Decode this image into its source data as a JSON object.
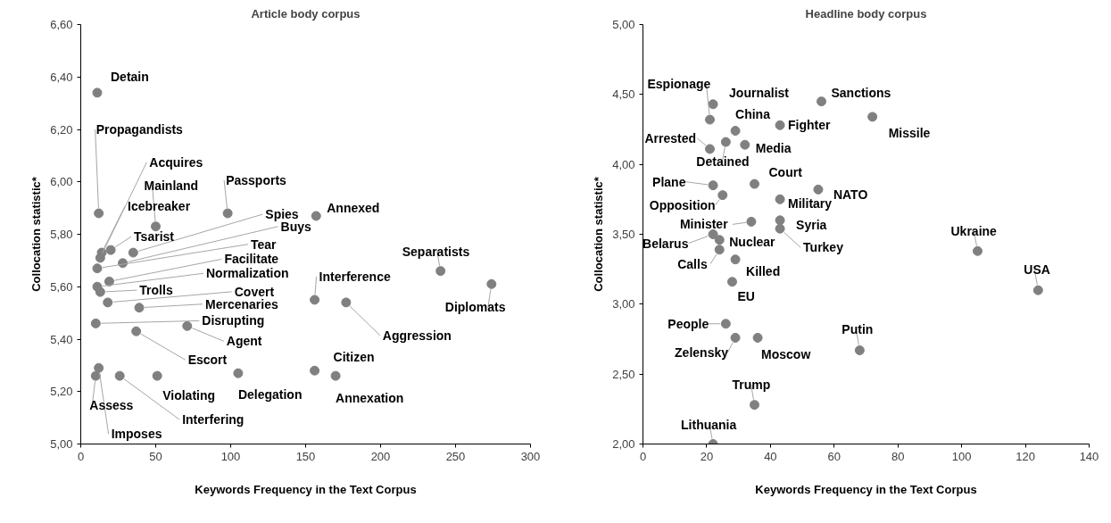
{
  "chart_data": [
    {
      "type": "scatter",
      "title": "Article body corpus",
      "xlabel": "Keywords Frequency in the Text Corpus",
      "ylabel": "Collocation statistic*",
      "xlim": [
        0,
        300
      ],
      "xticks": [
        0,
        50,
        100,
        150,
        200,
        250,
        300
      ],
      "ylim": [
        5.0,
        6.6
      ],
      "yticks": [
        {
          "value": 5.0,
          "label": "5,00"
        },
        {
          "value": 5.2,
          "label": "5,20"
        },
        {
          "value": 5.4,
          "label": "5,40"
        },
        {
          "value": 5.6,
          "label": "5,60"
        },
        {
          "value": 5.8,
          "label": "5,80"
        },
        {
          "value": 6.0,
          "label": "6,00"
        },
        {
          "value": 6.2,
          "label": "6,20"
        },
        {
          "value": 6.4,
          "label": "6,40"
        },
        {
          "value": 6.6,
          "label": "6,60"
        }
      ],
      "grid": false,
      "marker": "circle",
      "series": [
        {
          "color": "#808080",
          "x": [
            11,
            12,
            13,
            50,
            14,
            98,
            20,
            35,
            28,
            11,
            19,
            11,
            13,
            18,
            39,
            10,
            71,
            37,
            157,
            156,
            177,
            240,
            274,
            156,
            170,
            10,
            12,
            51,
            26,
            105
          ],
          "values": [
            6.34,
            5.88,
            5.71,
            5.83,
            5.73,
            5.88,
            5.74,
            5.73,
            5.69,
            5.67,
            5.62,
            5.6,
            5.58,
            5.54,
            5.52,
            5.46,
            5.45,
            5.43,
            5.87,
            5.55,
            5.54,
            5.66,
            5.61,
            5.28,
            5.26,
            5.26,
            5.29,
            5.26,
            5.26,
            5.27
          ]
        }
      ],
      "annotations": [
        {
          "text": "Detain",
          "x": 11,
          "y": 6.34
        },
        {
          "text": "Propagandists",
          "x": 12,
          "y": 5.88
        },
        {
          "text": "Acquires",
          "x": 13,
          "y": 5.71
        },
        {
          "text": "Mainland",
          "x": 50,
          "y": 5.83
        },
        {
          "text": "Icebreaker",
          "x": 14,
          "y": 5.73
        },
        {
          "text": "Passports",
          "x": 98,
          "y": 5.88
        },
        {
          "text": "Tsarist",
          "x": 20,
          "y": 5.74
        },
        {
          "text": "Spies",
          "x": 35,
          "y": 5.73
        },
        {
          "text": "Buys",
          "x": 28,
          "y": 5.69
        },
        {
          "text": "Tear",
          "x": 11,
          "y": 5.67
        },
        {
          "text": "Facilitate",
          "x": 19,
          "y": 5.62
        },
        {
          "text": "Normalization",
          "x": 11,
          "y": 5.6
        },
        {
          "text": "Trolls",
          "x": 13,
          "y": 5.58
        },
        {
          "text": "Covert",
          "x": 18,
          "y": 5.54
        },
        {
          "text": "Mercenaries",
          "x": 39,
          "y": 5.52
        },
        {
          "text": "Disrupting",
          "x": 10,
          "y": 5.46
        },
        {
          "text": "Agent",
          "x": 71,
          "y": 5.45
        },
        {
          "text": "Escort",
          "x": 37,
          "y": 5.43
        },
        {
          "text": "Annexed",
          "x": 157,
          "y": 5.87
        },
        {
          "text": "Interference",
          "x": 156,
          "y": 5.55
        },
        {
          "text": "Aggression",
          "x": 177,
          "y": 5.54
        },
        {
          "text": "Separatists",
          "x": 240,
          "y": 5.66
        },
        {
          "text": "Diplomats",
          "x": 274,
          "y": 5.61
        },
        {
          "text": "Citizen",
          "x": 156,
          "y": 5.28
        },
        {
          "text": "Annexation",
          "x": 170,
          "y": 5.26
        },
        {
          "text": "Assess",
          "x": 10,
          "y": 5.26
        },
        {
          "text": "Imposes",
          "x": 12,
          "y": 5.29
        },
        {
          "text": "Violating",
          "x": 51,
          "y": 5.26
        },
        {
          "text": "Interfering",
          "x": 26,
          "y": 5.26
        },
        {
          "text": "Delegation",
          "x": 105,
          "y": 5.27
        }
      ]
    },
    {
      "type": "scatter",
      "title": "Headline body corpus",
      "xlabel": "Keywords Frequency in the Text Corpus",
      "ylabel": "Collocation statistic*",
      "xlim": [
        0,
        140
      ],
      "xticks": [
        0,
        20,
        40,
        60,
        80,
        100,
        120,
        140
      ],
      "ylim": [
        2.0,
        5.0
      ],
      "yticks": [
        {
          "value": 2.0,
          "label": "2,00"
        },
        {
          "value": 2.5,
          "label": "2,50"
        },
        {
          "value": 3.0,
          "label": "3,00"
        },
        {
          "value": 3.5,
          "label": "3,50"
        },
        {
          "value": 4.0,
          "label": "4,00"
        },
        {
          "value": 4.5,
          "label": "4,50"
        },
        {
          "value": 5.0,
          "label": "5,00"
        }
      ],
      "grid": false,
      "marker": "circle",
      "series": [
        {
          "color": "#808080",
          "x": [
            21,
            22,
            56,
            72,
            29,
            43,
            21,
            26,
            32,
            35,
            22,
            25,
            55,
            43,
            34,
            43,
            22,
            24,
            43,
            24,
            29,
            28,
            26,
            29,
            36,
            68,
            35,
            22,
            105,
            124
          ],
          "values": [
            4.32,
            4.43,
            4.45,
            4.34,
            4.24,
            4.28,
            4.11,
            4.16,
            4.14,
            3.86,
            3.85,
            3.78,
            3.82,
            3.75,
            3.59,
            3.6,
            3.5,
            3.46,
            3.54,
            3.39,
            3.32,
            3.16,
            2.86,
            2.76,
            2.76,
            2.67,
            2.28,
            2.0,
            3.38,
            3.1
          ]
        }
      ],
      "annotations": [
        {
          "text": "Espionage",
          "x": 21,
          "y": 4.32
        },
        {
          "text": "Journalist",
          "x": 22,
          "y": 4.43
        },
        {
          "text": "Sanctions",
          "x": 56,
          "y": 4.45
        },
        {
          "text": "Missile",
          "x": 72,
          "y": 4.34
        },
        {
          "text": "China",
          "x": 29,
          "y": 4.24
        },
        {
          "text": "Fighter",
          "x": 43,
          "y": 4.28
        },
        {
          "text": "Arrested",
          "x": 21,
          "y": 4.11
        },
        {
          "text": "Detained",
          "x": 26,
          "y": 4.16
        },
        {
          "text": "Media",
          "x": 32,
          "y": 4.14
        },
        {
          "text": "Court",
          "x": 35,
          "y": 3.86
        },
        {
          "text": "Plane",
          "x": 22,
          "y": 3.85
        },
        {
          "text": "Opposition",
          "x": 25,
          "y": 3.78
        },
        {
          "text": "NATO",
          "x": 55,
          "y": 3.82
        },
        {
          "text": "Military",
          "x": 43,
          "y": 3.75
        },
        {
          "text": "Minister",
          "x": 34,
          "y": 3.59
        },
        {
          "text": "Syria",
          "x": 43,
          "y": 3.6
        },
        {
          "text": "Belarus",
          "x": 22,
          "y": 3.5
        },
        {
          "text": "Nuclear",
          "x": 24,
          "y": 3.46
        },
        {
          "text": "Turkey",
          "x": 43,
          "y": 3.54
        },
        {
          "text": "Calls",
          "x": 24,
          "y": 3.39
        },
        {
          "text": "Killed",
          "x": 29,
          "y": 3.32
        },
        {
          "text": "EU",
          "x": 28,
          "y": 3.16
        },
        {
          "text": "People",
          "x": 26,
          "y": 2.86
        },
        {
          "text": "Zelensky",
          "x": 29,
          "y": 2.76
        },
        {
          "text": "Moscow",
          "x": 36,
          "y": 2.76
        },
        {
          "text": "Putin",
          "x": 68,
          "y": 2.67
        },
        {
          "text": "Trump",
          "x": 35,
          "y": 2.28
        },
        {
          "text": "Lithuania",
          "x": 22,
          "y": 2.0
        },
        {
          "text": "Ukraine",
          "x": 105,
          "y": 3.38
        },
        {
          "text": "USA",
          "x": 124,
          "y": 3.1
        }
      ]
    }
  ]
}
